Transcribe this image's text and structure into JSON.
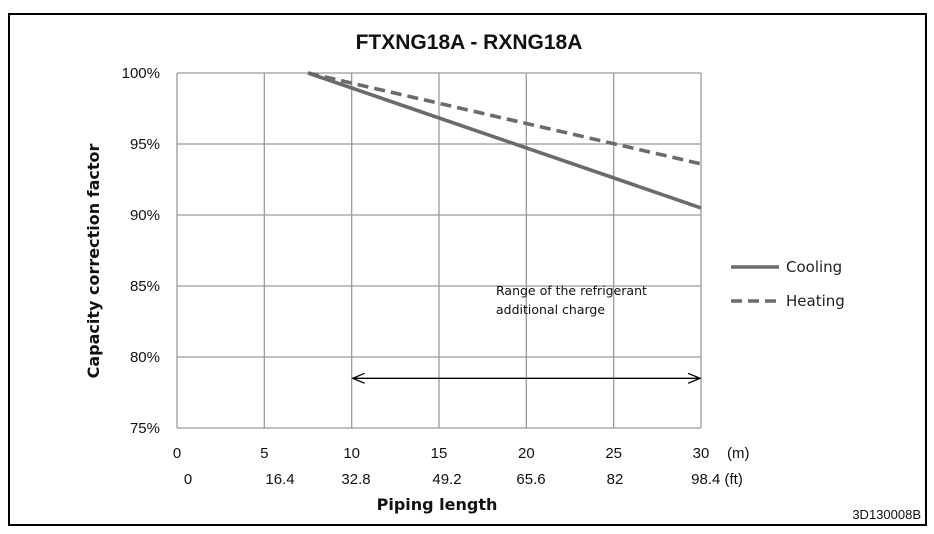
{
  "chart_data": {
    "type": "line",
    "title": "FTXNG18A - RXNG18A",
    "ylabel": "Capacity correction factor",
    "xlabel": "Piping length",
    "x_unit_m": "(m)",
    "x_unit_ft": "(ft)",
    "xlim": [
      0,
      30
    ],
    "ylim": [
      75,
      100
    ],
    "x_ticks_m": [
      0,
      5,
      10,
      15,
      20,
      25,
      30
    ],
    "x_tick_labels_m": [
      "0",
      "5",
      "10",
      "15",
      "20",
      "25",
      "30"
    ],
    "x_tick_labels_ft": [
      "0",
      "16.4",
      "32.8",
      "49.2",
      "65.6",
      "82",
      "98.4"
    ],
    "y_ticks": [
      75,
      80,
      85,
      90,
      95,
      100
    ],
    "y_tick_labels": [
      "75%",
      "80%",
      "85%",
      "90%",
      "95%",
      "100%"
    ],
    "grid": true,
    "series": [
      {
        "name": "Cooling",
        "style": "solid",
        "color": "#6b6b6b",
        "x": [
          7.5,
          30
        ],
        "y": [
          100,
          90.5
        ]
      },
      {
        "name": "Heating",
        "style": "dashed",
        "color": "#6b6b6b",
        "x": [
          7.5,
          30
        ],
        "y": [
          100,
          93.6
        ]
      }
    ],
    "legend_position": "right",
    "annotation": {
      "lines": [
        "Range of the refrigerant",
        "additional charge"
      ],
      "range_x": [
        10,
        30
      ],
      "range_y": 78.5
    }
  },
  "figure_ref": "3D130008B"
}
